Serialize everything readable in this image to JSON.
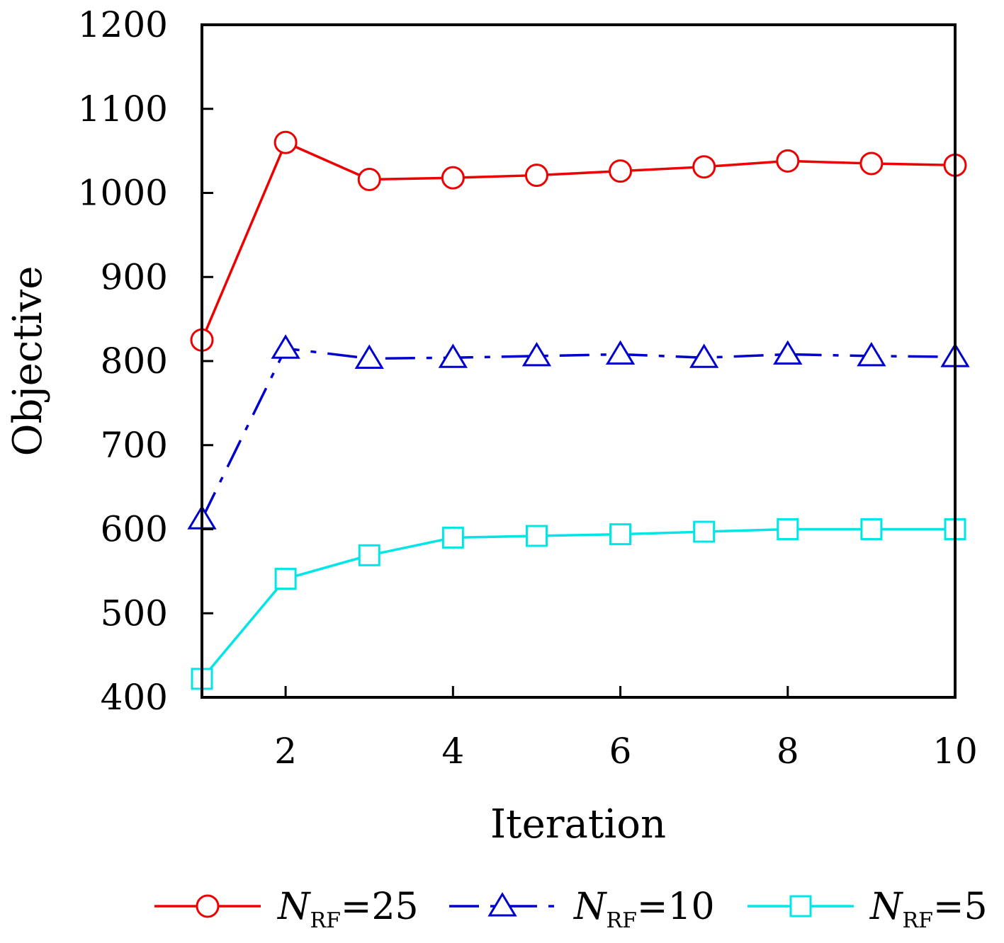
{
  "chart_data": {
    "type": "line",
    "xlabel": "Iteration",
    "ylabel": "Objective",
    "xlim": [
      1,
      10
    ],
    "ylim": [
      400,
      1200
    ],
    "xticks": [
      2,
      4,
      6,
      8,
      10
    ],
    "yticks": [
      400,
      500,
      600,
      700,
      800,
      900,
      1000,
      1100,
      1200
    ],
    "grid": false,
    "legend_position": "bottom",
    "x": [
      1,
      2,
      3,
      4,
      5,
      6,
      7,
      8,
      9,
      10
    ],
    "series": [
      {
        "name": "N_RF=25",
        "legend_base": "N",
        "legend_sub": "RF",
        "legend_rest": "=25",
        "color": "#ee0000",
        "marker": "circle",
        "dash": "solid",
        "values": [
          825,
          1060,
          1016,
          1018,
          1021,
          1026,
          1031,
          1038,
          1035,
          1033
        ]
      },
      {
        "name": "N_RF=10",
        "legend_base": "N",
        "legend_sub": "RF",
        "legend_rest": "=10",
        "color": "#0000cc",
        "marker": "triangle",
        "dash": "dashdot",
        "values": [
          612,
          815,
          803,
          804,
          806,
          808,
          804,
          808,
          806,
          805
        ]
      },
      {
        "name": "N_RF=5",
        "legend_base": "N",
        "legend_sub": "RF",
        "legend_rest": "=5",
        "color": "#00e5e5",
        "marker": "square",
        "dash": "solid",
        "values": [
          422,
          541,
          569,
          590,
          592,
          594,
          597,
          600,
          600,
          600
        ]
      }
    ]
  }
}
